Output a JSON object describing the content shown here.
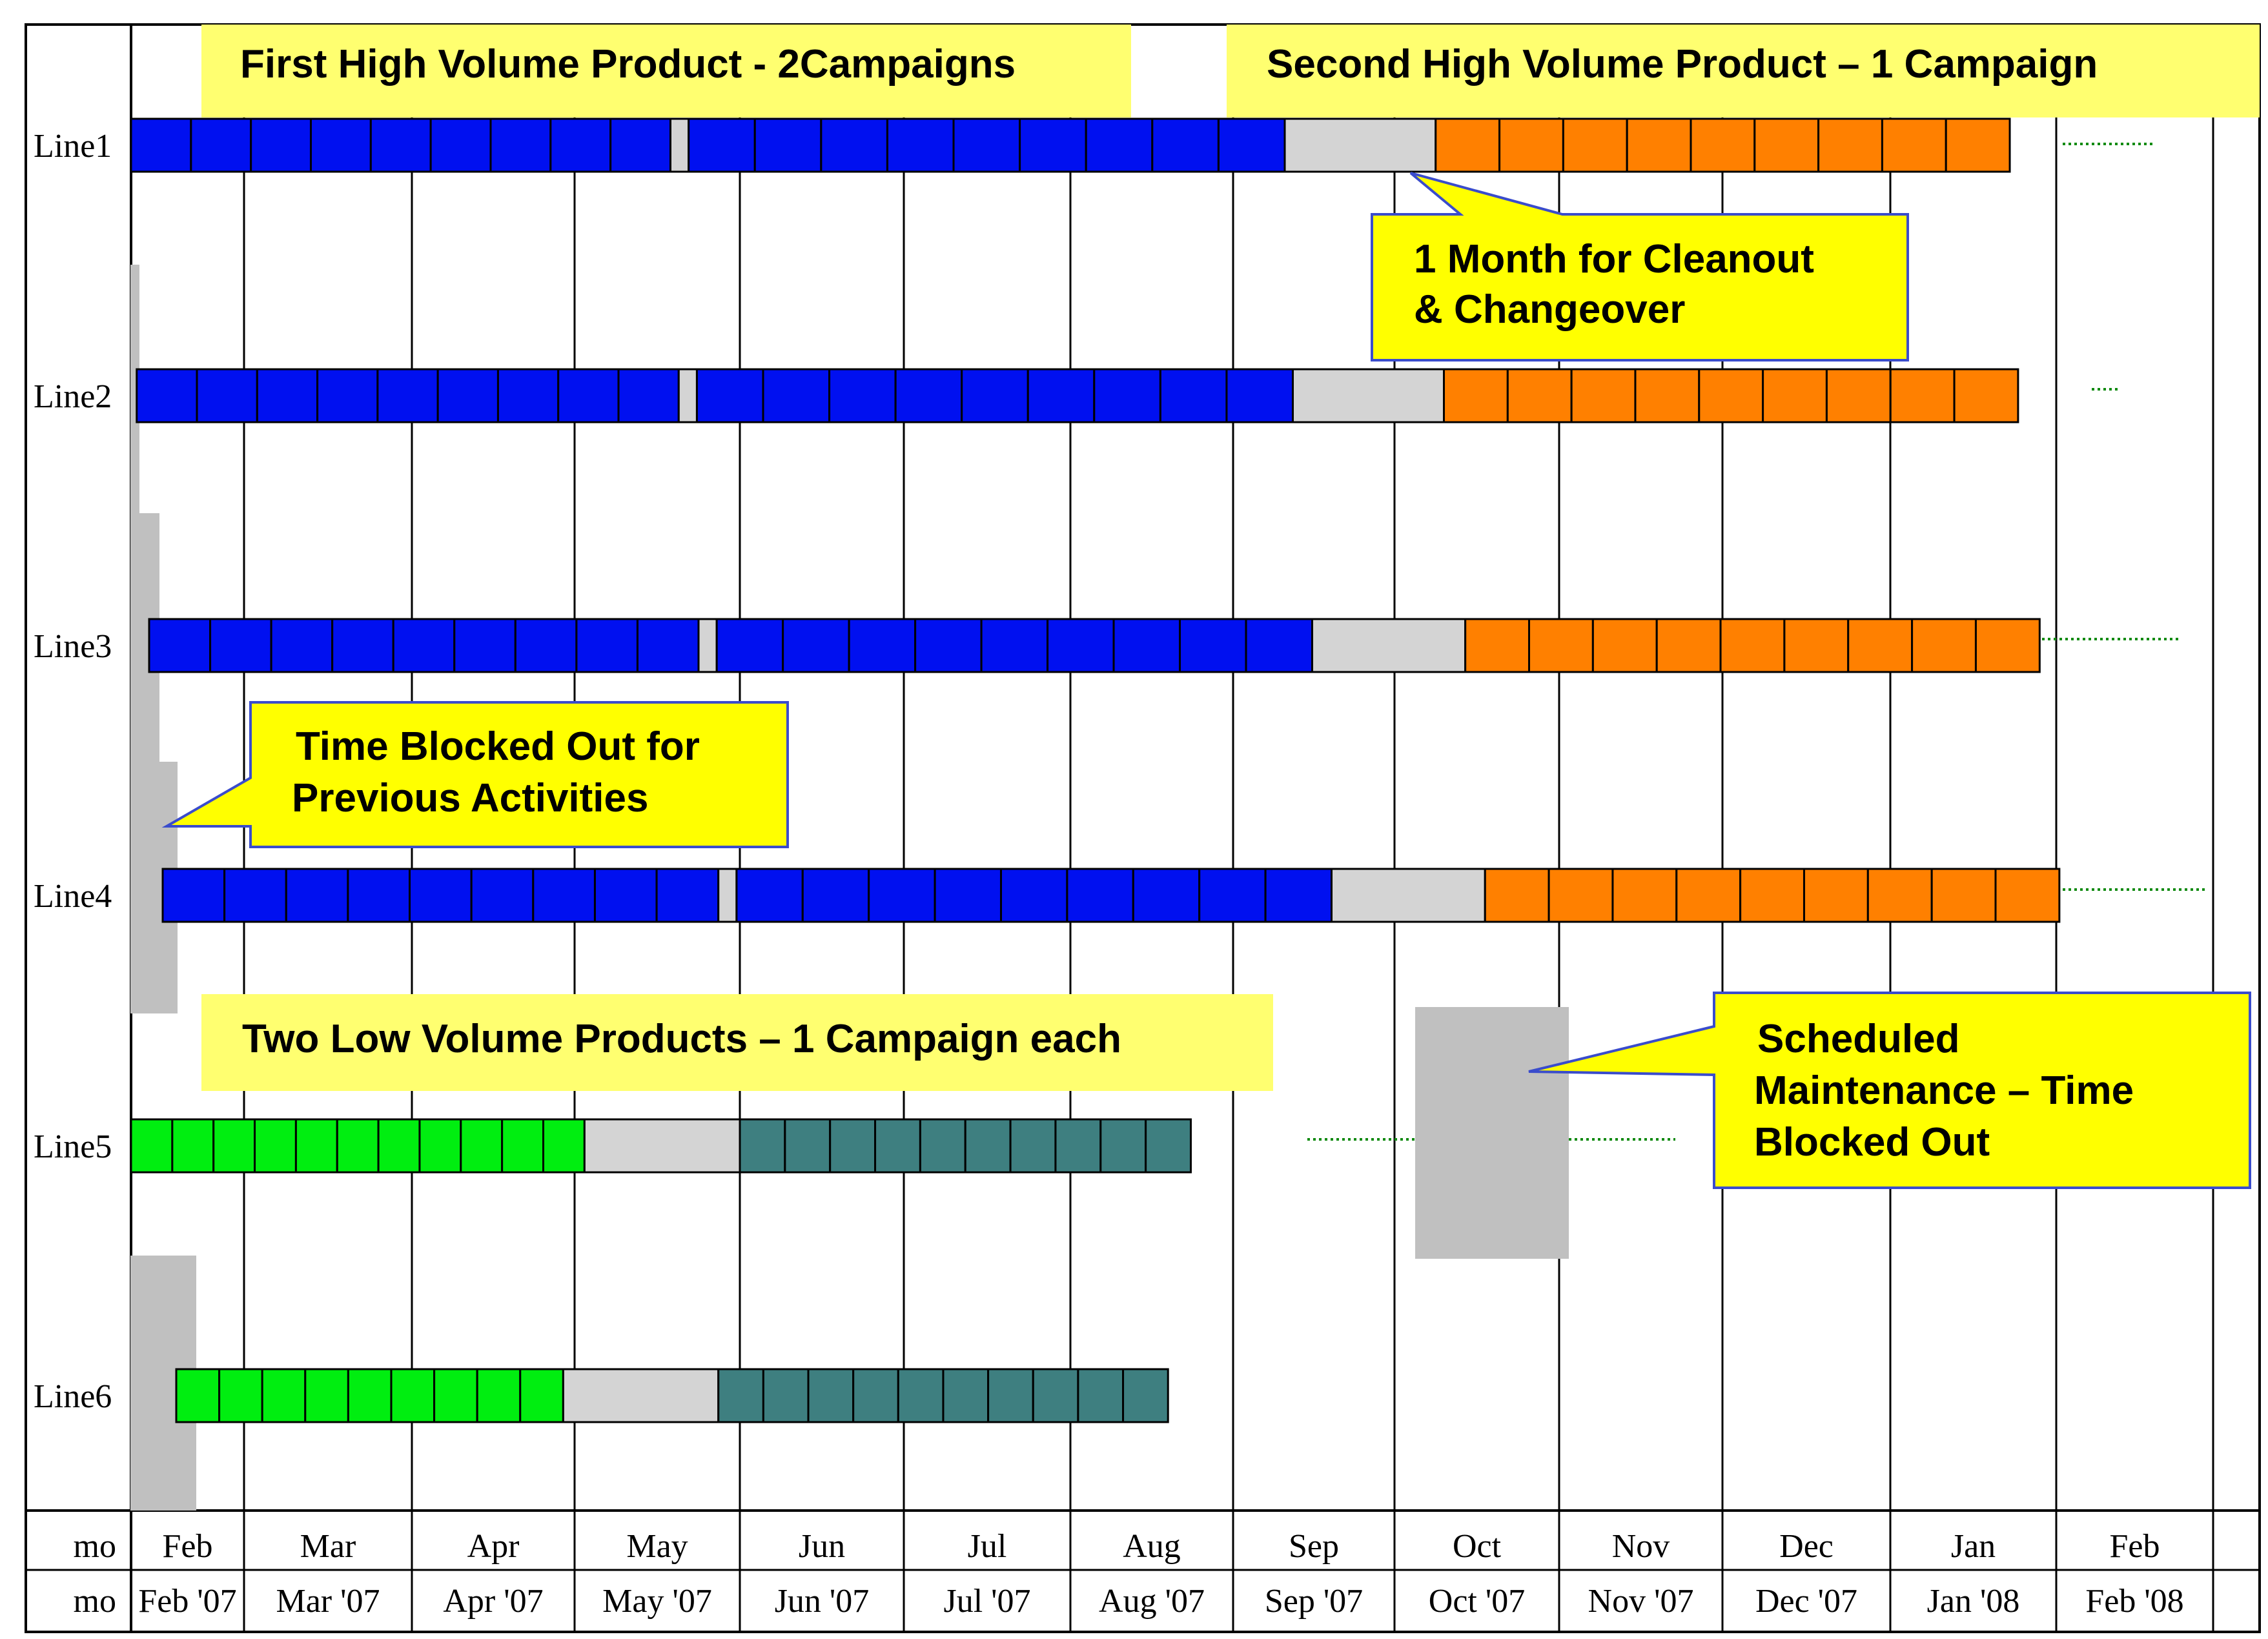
{
  "colors": {
    "hv_campaign": "#0010f0",
    "lv_first": "#00ee10",
    "lv_second": "#3e7f80",
    "second_hv": "#ff8000",
    "cleanout": "#d4d4d4",
    "blocked": "#c0c0c0",
    "note_fill": "#ffff00",
    "banner_fill": "#ffff70",
    "note_border": "#3a4ccc",
    "dotted": "#0f8a0f",
    "grid": "#000000"
  },
  "headers": {
    "first_hv": "First High Volume Product - 2Campaigns",
    "second_hv": "Second High Volume Product – 1 Campaign",
    "low_volume": "Two Low Volume Products – 1 Campaign each"
  },
  "callouts": {
    "cleanout": [
      "1 Month for Cleanout",
      "& Changeover"
    ],
    "blocked_previous": [
      "Time Blocked Out for",
      "Previous Activities"
    ],
    "maintenance": [
      "Scheduled",
      "Maintenance – Time",
      "Blocked Out"
    ]
  },
  "axis": {
    "row1_label": "mo",
    "row2_label": "mo",
    "months": [
      "Feb",
      "Mar",
      "Apr",
      "May",
      "Jun",
      "Jul",
      "Aug",
      "Sep",
      "Oct",
      "Nov",
      "Dec",
      "Jan",
      "Feb"
    ],
    "month_years": [
      "Feb '07",
      "Mar '07",
      "Apr '07",
      "May '07",
      "Jun '07",
      "Jul '07",
      "Aug '07",
      "Sep '07",
      "Oct '07",
      "Nov '07",
      "Dec '07",
      "Jan '08",
      "Feb '08"
    ]
  },
  "lines": [
    {
      "name": "Line1",
      "segments": [
        {
          "type": "hv_campaign",
          "start": 0.0,
          "end": 3.58,
          "cells": 9
        },
        {
          "type": "cleanout",
          "start": 3.58,
          "end": 3.69,
          "cells": 1
        },
        {
          "type": "hv_campaign",
          "start": 3.69,
          "end": 7.32,
          "cells": 9
        },
        {
          "type": "cleanout",
          "start": 7.32,
          "end": 8.25,
          "cells": 1
        },
        {
          "type": "second_hv",
          "start": 8.25,
          "end": 11.72,
          "cells": 9
        }
      ]
    },
    {
      "name": "Line2",
      "segments": [
        {
          "type": "hv_campaign",
          "start": 0.05,
          "end": 3.63,
          "cells": 9
        },
        {
          "type": "cleanout",
          "start": 3.63,
          "end": 3.74,
          "cells": 1
        },
        {
          "type": "hv_campaign",
          "start": 3.74,
          "end": 7.37,
          "cells": 9
        },
        {
          "type": "cleanout",
          "start": 7.37,
          "end": 8.3,
          "cells": 1
        },
        {
          "type": "second_hv",
          "start": 8.3,
          "end": 11.77,
          "cells": 9
        }
      ]
    },
    {
      "name": "Line3",
      "segments": [
        {
          "type": "hv_campaign",
          "start": 0.16,
          "end": 3.75,
          "cells": 9
        },
        {
          "type": "cleanout",
          "start": 3.75,
          "end": 3.86,
          "cells": 1
        },
        {
          "type": "hv_campaign",
          "start": 3.86,
          "end": 7.49,
          "cells": 9
        },
        {
          "type": "cleanout",
          "start": 7.49,
          "end": 8.43,
          "cells": 1
        },
        {
          "type": "second_hv",
          "start": 8.43,
          "end": 11.9,
          "cells": 9
        }
      ]
    },
    {
      "name": "Line4",
      "segments": [
        {
          "type": "hv_campaign",
          "start": 0.28,
          "end": 3.87,
          "cells": 9
        },
        {
          "type": "cleanout",
          "start": 3.87,
          "end": 3.98,
          "cells": 1
        },
        {
          "type": "hv_campaign",
          "start": 3.98,
          "end": 7.61,
          "cells": 9
        },
        {
          "type": "cleanout",
          "start": 7.61,
          "end": 8.55,
          "cells": 1
        },
        {
          "type": "second_hv",
          "start": 8.55,
          "end": 12.02,
          "cells": 9
        }
      ]
    },
    {
      "name": "Line5",
      "segments": [
        {
          "type": "lv_first",
          "start": 0.0,
          "end": 3.06,
          "cells": 11
        },
        {
          "type": "cleanout",
          "start": 3.06,
          "end": 4.0,
          "cells": 1
        },
        {
          "type": "lv_second",
          "start": 4.0,
          "end": 6.74,
          "cells": 10
        }
      ]
    },
    {
      "name": "Line6",
      "segments": [
        {
          "type": "lv_first",
          "start": 0.4,
          "end": 2.93,
          "cells": 9
        },
        {
          "type": "cleanout",
          "start": 2.93,
          "end": 3.87,
          "cells": 1
        },
        {
          "type": "lv_second",
          "start": 3.87,
          "end": 6.6,
          "cells": 10
        }
      ]
    }
  ]
}
